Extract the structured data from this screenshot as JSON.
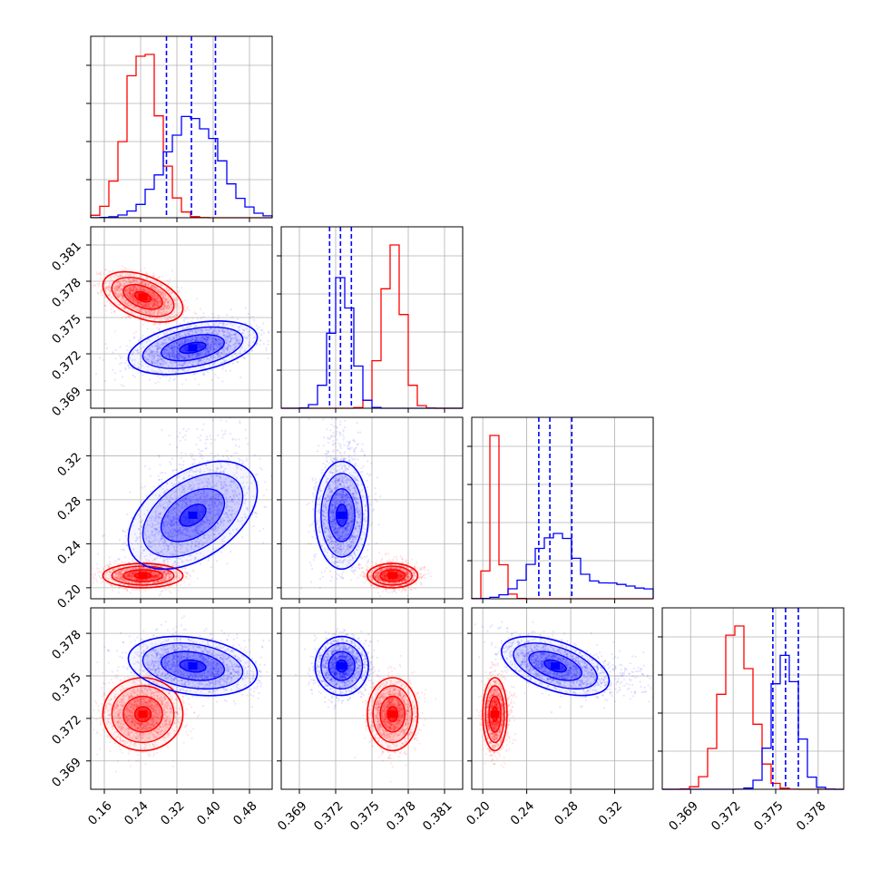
{
  "chart_data": {
    "type": "corner",
    "title": "",
    "grid": true,
    "parameters": [
      {
        "name": "",
        "range": [
          0.13,
          0.53
        ],
        "ticks": [
          0.16,
          0.24,
          0.32,
          0.4,
          0.48
        ],
        "tick_labels": [
          "0.16",
          "0.24",
          "0.32",
          "0.40",
          "0.48"
        ]
      },
      {
        "name": "",
        "range": [
          0.3675,
          0.3825
        ],
        "ticks": [
          0.369,
          0.372,
          0.375,
          0.378,
          0.381
        ],
        "tick_labels": [
          "0.369",
          "0.372",
          "0.375",
          "0.378",
          "0.381"
        ]
      },
      {
        "name": "",
        "range": [
          0.19,
          0.355
        ],
        "ticks": [
          0.2,
          0.24,
          0.28,
          0.32
        ],
        "tick_labels": [
          "0.20",
          "0.24",
          "0.28",
          "0.32"
        ]
      },
      {
        "name": "",
        "range": [
          0.367,
          0.3798
        ],
        "ticks": [
          0.369,
          0.372,
          0.375,
          0.378
        ],
        "tick_labels": [
          "0.369",
          "0.372",
          "0.375",
          "0.378"
        ]
      }
    ],
    "series": [
      {
        "color": "#ff0000",
        "means": [
          0.245,
          0.3767,
          0.211,
          0.3723
        ],
        "sigmas": [
          0.036,
          0.00085,
          0.0045,
          0.00105
        ],
        "correlations": {
          "0-1": -0.45,
          "0-2": 0.0,
          "0-3": 0.0,
          "1-2": 0.0,
          "1-3": 0.0,
          "2-3": 0.0
        },
        "tail": [
          0,
          0,
          0.25,
          0
        ],
        "hist_peak_1d": [
          1.0,
          1.0,
          1.0,
          1.0
        ]
      },
      {
        "color": "#0000ff",
        "means": [
          0.355,
          0.3725,
          0.266,
          0.3757
        ],
        "sigmas": [
          0.058,
          0.0009,
          0.02,
          0.00085
        ],
        "correlations": {
          "0-1": 0.4,
          "0-2": 0.45,
          "0-3": -0.25,
          "1-2": 0.0,
          "1-3": 0.0,
          "2-3": -0.5
        },
        "tail": [
          0,
          0,
          0.9,
          0
        ],
        "hist_peak_1d": [
          0.62,
          0.8,
          0.4,
          0.82
        ],
        "quantiles": [
          [
            0.297,
            0.352,
            0.405
          ],
          [
            0.3715,
            0.3724,
            0.3733
          ],
          [
            0.251,
            0.261,
            0.281
          ],
          [
            0.3748,
            0.3757,
            0.3766
          ]
        ]
      }
    ]
  }
}
